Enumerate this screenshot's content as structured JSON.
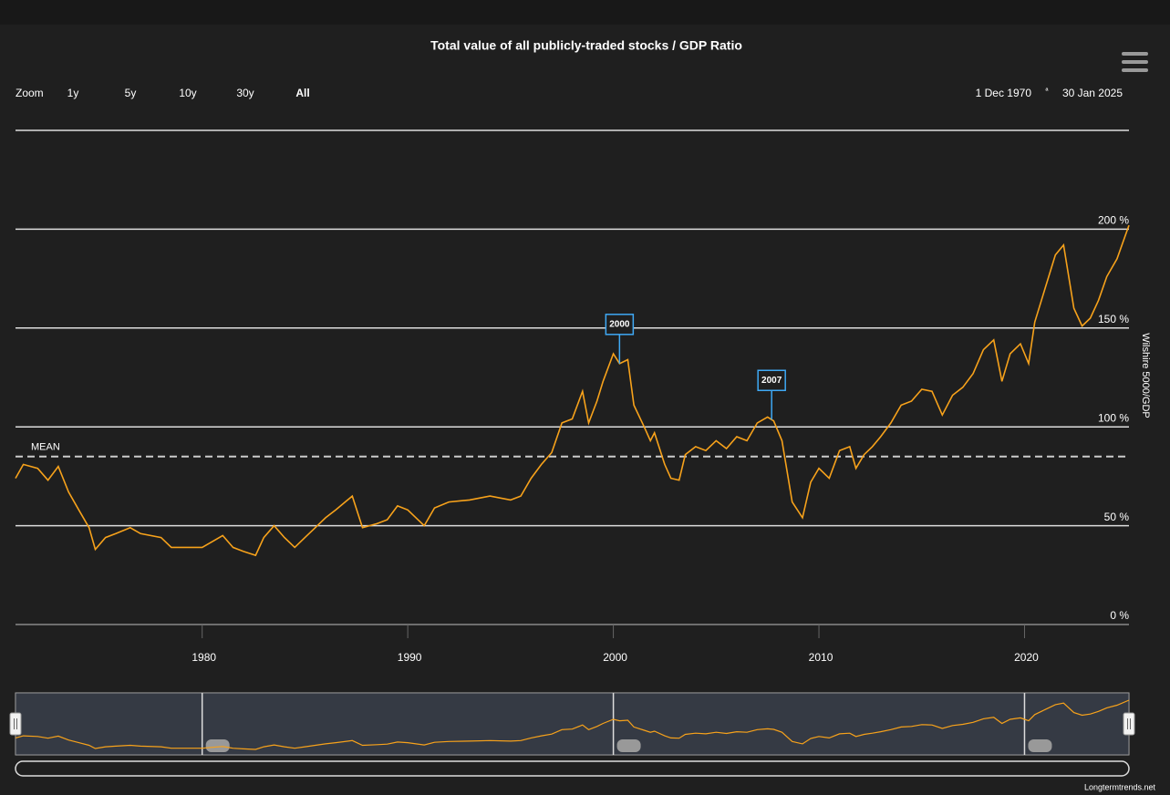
{
  "chart_data": {
    "type": "line",
    "title": "Total value of all publicly-traded stocks / GDP Ratio",
    "y_axis_label": "Wilshire 5000/GDP",
    "credit": "Longtermtrends.net",
    "zoom": {
      "label": "Zoom",
      "buttons": [
        "1y",
        "5y",
        "10y",
        "30y",
        "All"
      ],
      "selected": 4
    },
    "range": {
      "from": "1 Dec 1970",
      "separator": "ª",
      "to": "30 Jan 2025"
    },
    "mean": {
      "label": "MEAN",
      "value": 85
    },
    "flags": [
      {
        "label": "2000",
        "x": 2000.3
      },
      {
        "label": "2007",
        "x": 2007.7
      }
    ],
    "xlim": [
      1970.92,
      2025.08
    ],
    "xticks": [
      1980,
      1990,
      2000,
      2010,
      2020
    ],
    "ylim": [
      0,
      250
    ],
    "yticks": [
      {
        "value": 0,
        "label": "0  %"
      },
      {
        "value": 50,
        "label": "50  %"
      },
      {
        "value": 100,
        "label": "100  %"
      },
      {
        "value": 150,
        "label": "150  %"
      },
      {
        "value": 200,
        "label": "200  %"
      }
    ],
    "grid": true,
    "series": [
      {
        "name": "Wilshire 5000/GDP",
        "color": "#f7a21b",
        "x": [
          1970.92,
          1971.3,
          1972,
          1972.5,
          1973,
          1973.5,
          1974,
          1974.5,
          1974.8,
          1975.3,
          1975.8,
          1976.5,
          1977,
          1978,
          1978.5,
          1979,
          1980,
          1980.5,
          1981,
          1981.5,
          1982,
          1982.6,
          1983,
          1983.5,
          1984,
          1984.5,
          1985,
          1985.5,
          1986,
          1986.5,
          1987.3,
          1987.8,
          1988.5,
          1989,
          1989.5,
          1990,
          1990.8,
          1991.3,
          1992,
          1993,
          1994,
          1995,
          1995.5,
          1996,
          1996.5,
          1997,
          1997.5,
          1998,
          1998.5,
          1998.8,
          1999.2,
          1999.5,
          2000,
          2000.3,
          2000.7,
          2001,
          2001.5,
          2001.8,
          2002,
          2002.5,
          2002.8,
          2003.2,
          2003.5,
          2004,
          2004.5,
          2005,
          2005.5,
          2006,
          2006.5,
          2007,
          2007.5,
          2007.8,
          2008.2,
          2008.7,
          2009.2,
          2009.6,
          2010,
          2010.5,
          2011,
          2011.5,
          2011.8,
          2012.2,
          2012.6,
          2013,
          2013.5,
          2014,
          2014.5,
          2015,
          2015.5,
          2016,
          2016.5,
          2017,
          2017.5,
          2018,
          2018.5,
          2018.9,
          2019.3,
          2019.8,
          2020.2,
          2020.5,
          2021,
          2021.5,
          2021.9,
          2022.4,
          2022.8,
          2023.2,
          2023.6,
          2024,
          2024.5,
          2025.08
        ],
        "values": [
          74,
          81,
          79,
          73,
          80,
          67,
          58,
          49,
          38,
          44,
          46,
          49,
          46,
          44,
          39,
          39,
          39,
          42,
          45,
          39,
          37,
          35,
          44,
          50,
          44,
          39,
          44,
          49,
          54,
          58,
          65,
          49,
          51,
          53,
          60,
          58,
          50,
          59,
          62,
          63,
          65,
          63,
          65,
          74,
          81,
          87,
          102,
          104,
          118,
          102,
          113,
          123,
          137,
          132,
          134,
          111,
          100,
          93,
          97,
          81,
          74,
          73,
          86,
          90,
          88,
          93,
          89,
          95,
          93,
          102,
          105,
          103,
          93,
          62,
          54,
          72,
          79,
          74,
          88,
          90,
          79,
          86,
          90,
          95,
          102,
          111,
          113,
          119,
          118,
          106,
          116,
          120,
          127,
          139,
          144,
          123,
          137,
          142,
          132,
          153,
          170,
          187,
          192,
          160,
          151,
          155,
          164,
          176,
          185,
          202
        ]
      }
    ]
  }
}
